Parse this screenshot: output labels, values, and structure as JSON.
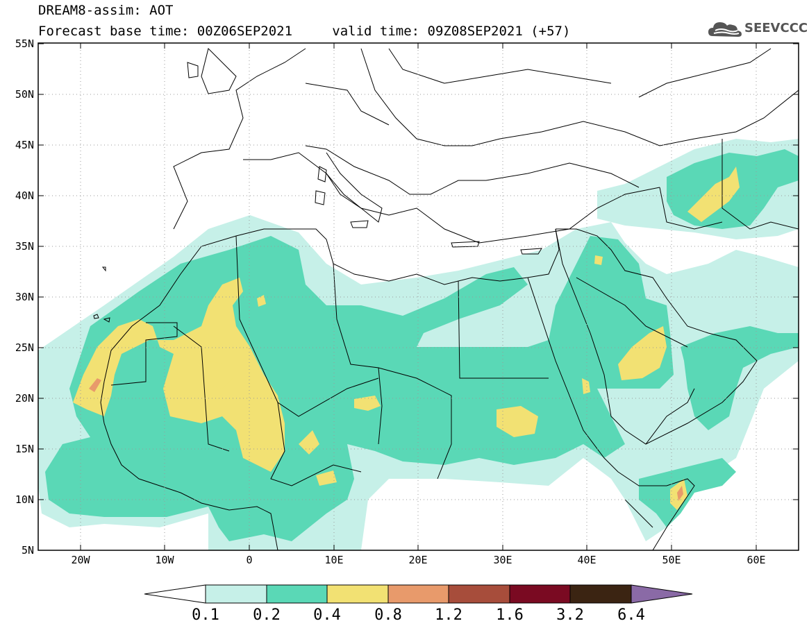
{
  "header": {
    "line1": "DREAM8-assim: AOT",
    "line2_left": "Forecast base time: 00Z06SEP2021",
    "line2_right": "valid time: 09Z08SEP2021 (+57)"
  },
  "logo": {
    "text": "SEEVCCC",
    "icon": "cloud-icon"
  },
  "map": {
    "lon_range": [
      -25,
      65
    ],
    "lat_range": [
      5,
      55
    ],
    "lat_ticks": [
      "55N",
      "50N",
      "45N",
      "40N",
      "35N",
      "30N",
      "25N",
      "20N",
      "15N",
      "10N",
      "5N"
    ],
    "lon_ticks": [
      "20W",
      "10W",
      "0",
      "10E",
      "20E",
      "30E",
      "40E",
      "50E",
      "60E"
    ]
  },
  "colorbar": {
    "labels": [
      "0.1",
      "0.2",
      "0.4",
      "0.8",
      "1.2",
      "1.6",
      "3.2",
      "6.4"
    ],
    "colors": [
      "#c6f0e8",
      "#5ad8b6",
      "#f2e173",
      "#e89a6b",
      "#a74d3b",
      "#7a0a22",
      "#3b2412",
      "#8a6aa6"
    ]
  }
}
